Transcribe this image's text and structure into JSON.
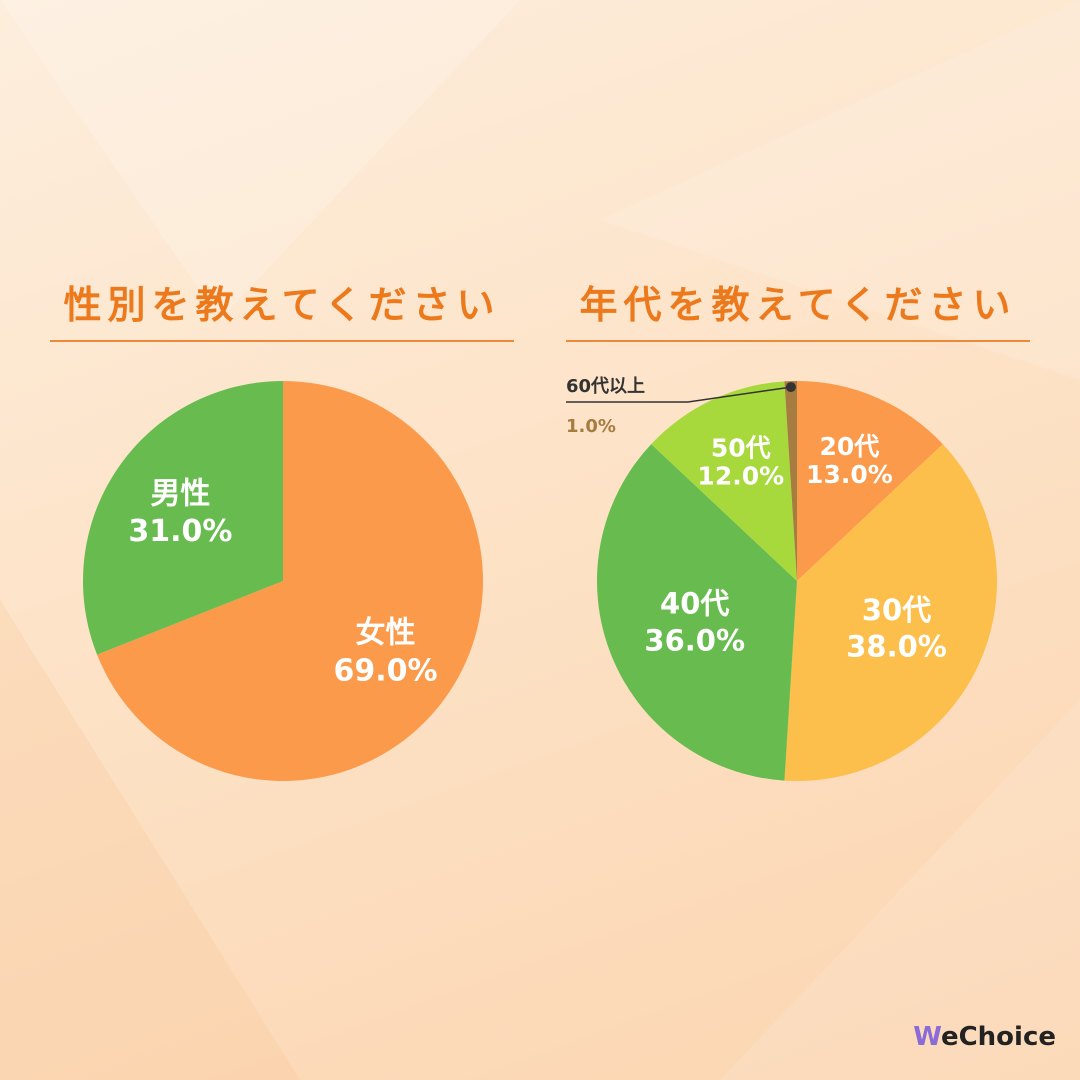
{
  "charts": {
    "gender": {
      "title": "性別を教えてください"
    },
    "age": {
      "title": "年代を教えてください"
    }
  },
  "logo": {
    "first": "W",
    "rest": "eChoice"
  },
  "chart_data": [
    {
      "type": "pie",
      "title": "性別を教えてください",
      "unit": "%",
      "slices": [
        {
          "label": "女性",
          "value": 69.0,
          "display": "69.0%",
          "color": "#fb9a4b",
          "text_color": "#ffffff"
        },
        {
          "label": "男性",
          "value": 31.0,
          "display": "31.0%",
          "color": "#68bc4f",
          "text_color": "#ffffff"
        }
      ]
    },
    {
      "type": "pie",
      "title": "年代を教えてください",
      "unit": "%",
      "slices": [
        {
          "label": "20代",
          "value": 13.0,
          "display": "13.0%",
          "color": "#fb9a4b",
          "text_color": "#ffffff"
        },
        {
          "label": "30代",
          "value": 38.0,
          "display": "38.0%",
          "color": "#fdbf4b",
          "text_color": "#ffffff"
        },
        {
          "label": "40代",
          "value": 36.0,
          "display": "36.0%",
          "color": "#68bc4f",
          "text_color": "#ffffff"
        },
        {
          "label": "50代",
          "value": 12.0,
          "display": "12.0%",
          "color": "#a7d93c",
          "text_color": "#ffffff"
        },
        {
          "label": "60代以上",
          "value": 1.0,
          "display": "1.0%",
          "color": "#a67c41",
          "label_color": "#333333",
          "value_color": "#a67c41"
        }
      ]
    }
  ]
}
